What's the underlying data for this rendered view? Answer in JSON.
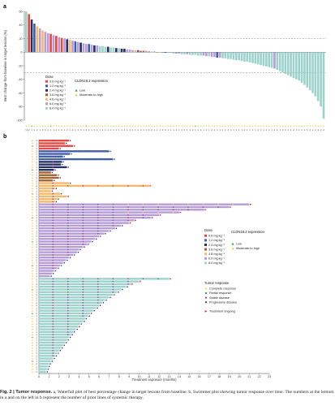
{
  "caption": {
    "label": "Fig. 2 | ",
    "title": "Tumor response.",
    "text": " a, Waterfall plot of best percentage change in target lesions from baseline. b, Swimmer plot showing tumor response over time. The numbers at the bottom in a and on the left in b represent the number of prior lines of systemic therapy."
  },
  "chart_data": [
    {
      "panel": "a",
      "type": "bar",
      "ylabel": "Best change from baseline in target lesions (%)",
      "ylim": [
        -100,
        60
      ],
      "yticks": [
        -100,
        -80,
        -60,
        -40,
        -20,
        0,
        20,
        40,
        60
      ],
      "reference_lines": [
        20,
        -30
      ],
      "grid": false,
      "legend_position": "bottom-left",
      "legend": {
        "dose_title": "Dose",
        "doses": [
          {
            "label": "0.6 mg kg⁻¹",
            "color": "#e8493f"
          },
          {
            "label": "1.2 mg kg⁻¹",
            "color": "#3f5fa8"
          },
          {
            "label": "2.4 mg kg⁻¹",
            "color": "#26305e"
          },
          {
            "label": "3.6 mg kg⁻¹",
            "color": "#a0642c"
          },
          {
            "label": "4.8 mg kg⁻¹",
            "color": "#f7b86a"
          },
          {
            "label": "6.0 mg kg⁻¹",
            "color": "#b69cd8"
          },
          {
            "label": "8.0 mg kg⁻¹",
            "color": "#9ed2cc"
          }
        ],
        "expr_title": "CLDN18.2 expression",
        "expr": [
          {
            "label": "Low",
            "color": "#3d9c3d"
          },
          {
            "label": "Moderate-to-high",
            "color": "#f2cc2a"
          }
        ]
      },
      "values": [
        60,
        56,
        48,
        42,
        38,
        35,
        32,
        30,
        28,
        27,
        25,
        24,
        22,
        21,
        20,
        19,
        18,
        17,
        16,
        15,
        14,
        13,
        12,
        12,
        11,
        10,
        10,
        9,
        9,
        8,
        8,
        7,
        7,
        6,
        6,
        5,
        5,
        4,
        4,
        3,
        3,
        3,
        2,
        2,
        2,
        1,
        1,
        1,
        0,
        0,
        0,
        -1,
        -1,
        -1,
        -2,
        -2,
        -2,
        -3,
        -3,
        -3,
        -4,
        -4,
        -4,
        -5,
        -5,
        -5,
        -6,
        -6,
        -7,
        -7,
        -8,
        -8,
        -9,
        -9,
        -10,
        -10,
        -11,
        -12,
        -12,
        -13,
        -14,
        -14,
        -15,
        -16,
        -17,
        -18,
        -19,
        -20,
        -21,
        -22,
        -23,
        -24,
        -26,
        -28,
        -30,
        -32,
        -34,
        -36,
        -38,
        -40,
        -42,
        -45,
        -48,
        -52,
        -56,
        -60,
        -65,
        -72,
        -80,
        -98
      ],
      "dose_index": [
        6,
        0,
        2,
        1,
        4,
        5,
        4,
        5,
        5,
        0,
        5,
        0,
        5,
        0,
        5,
        2,
        4,
        5,
        1,
        5,
        2,
        5,
        5,
        1,
        5,
        2,
        5,
        6,
        6,
        6,
        2,
        6,
        6,
        2,
        6,
        2,
        2,
        5,
        5,
        5,
        4,
        1,
        0,
        3,
        5,
        3,
        6,
        5,
        3,
        6,
        1,
        1,
        6,
        6,
        6,
        5,
        5,
        6,
        6,
        5,
        6,
        6,
        6,
        6,
        6,
        5,
        5,
        6,
        5,
        5,
        1,
        5,
        6,
        6,
        6,
        6,
        6,
        6,
        6,
        6,
        6,
        6,
        6,
        6,
        6,
        6,
        6,
        6,
        6,
        6,
        6,
        5,
        6,
        6,
        6,
        6,
        6,
        6,
        6,
        6,
        6,
        6,
        6,
        6,
        6,
        6,
        6,
        6,
        6,
        6
      ],
      "expression": [
        1,
        1,
        0,
        1,
        1,
        1,
        1,
        1,
        1,
        0,
        1,
        1,
        1,
        1,
        1,
        1,
        1,
        1,
        1,
        1,
        1,
        1,
        0,
        1,
        1,
        1,
        1,
        1,
        1,
        1,
        1,
        1,
        1,
        1,
        1,
        1,
        1,
        1,
        1,
        1,
        1,
        1,
        1,
        1,
        1,
        1,
        1,
        1,
        1,
        1,
        1,
        1,
        1,
        1,
        1,
        1,
        1,
        1,
        1,
        1,
        1,
        1,
        0,
        1,
        1,
        1,
        1,
        1,
        1,
        1,
        1,
        1,
        1,
        1,
        1,
        1,
        1,
        1,
        1,
        1,
        1,
        1,
        1,
        1,
        1,
        1,
        1,
        1,
        1,
        1,
        1,
        1,
        1,
        1,
        1,
        1,
        1,
        1,
        1,
        1,
        1,
        1,
        1,
        1,
        1,
        1,
        1,
        1,
        1,
        1
      ],
      "prior_lines": [
        ">4",
        "3",
        "1",
        "1",
        "2",
        "1",
        "3",
        "1",
        "2",
        "1",
        "1",
        "2",
        "1",
        "2",
        "1",
        "3",
        "1",
        "2",
        "1",
        "1",
        "3",
        "1",
        "2",
        "1",
        "1",
        "2",
        "1",
        "1",
        "1",
        "1",
        "2",
        "1",
        "1",
        "1",
        "1",
        "1",
        "2",
        "1",
        "1",
        "1",
        "1",
        "1",
        "3",
        "1",
        "1",
        "1",
        "2",
        "1",
        "1",
        "1",
        "2",
        "1",
        "1",
        "1",
        "1",
        "2",
        "1",
        "1",
        "1",
        "1",
        "1",
        "2",
        "1",
        "1",
        "1",
        "1",
        "1",
        "1",
        "2",
        "1",
        "1",
        "1",
        "1",
        "1",
        "2",
        "1",
        "1",
        "1",
        "1",
        "1",
        "2",
        "1",
        "1",
        "1",
        "1",
        "2",
        "1",
        "1",
        "1",
        "1",
        "1",
        "2",
        "1",
        "1",
        "1",
        "1",
        "1",
        "1",
        "2",
        "1",
        "1",
        "1",
        "1",
        "1",
        "2",
        "1",
        "2",
        "1",
        "2",
        "2"
      ]
    },
    {
      "panel": "b",
      "type": "swimmer",
      "xlabel": "Treatment exposure (months)",
      "xlim": [
        0,
        23
      ],
      "xticks": [
        0,
        1,
        2,
        3,
        4,
        5,
        6,
        7,
        8,
        9,
        10,
        11,
        12,
        13,
        14,
        15,
        16,
        17,
        18,
        19,
        20,
        21,
        22,
        23
      ],
      "grid": false,
      "legend_position": "right",
      "legend": {
        "dose_title": "Dose",
        "doses": [
          {
            "label": "0.6 mg kg⁻¹",
            "color": "#e8493f"
          },
          {
            "label": "1.2 mg kg⁻¹",
            "color": "#3f5fa8"
          },
          {
            "label": "2.4 mg kg⁻¹",
            "color": "#26305e"
          },
          {
            "label": "3.6 mg kg⁻¹",
            "color": "#a0642c"
          },
          {
            "label": "4.8 mg kg⁻¹",
            "color": "#f7b86a"
          },
          {
            "label": "6.0 mg kg⁻¹",
            "color": "#b69cd8"
          },
          {
            "label": "8.0 mg kg⁻¹",
            "color": "#9ed2cc"
          }
        ],
        "expr_title": "CLDN18.2 expression",
        "expr": [
          {
            "label": "Low",
            "color": "#3d9c3d"
          },
          {
            "label": "Moderate-to-high",
            "color": "#f2cc2a"
          }
        ],
        "response_title": "Tumor response",
        "responses": [
          {
            "label": "Complete response",
            "color": "#f2e233"
          },
          {
            "label": "Partial response",
            "color": "#2f8f3a"
          },
          {
            "label": "Stable disease",
            "color": "#9a3fa0"
          },
          {
            "label": "Progressive disease",
            "color": "#2b2f8f"
          }
        ],
        "ongoing_label": "Treatment ongoing",
        "ongoing_color": "#d92b2b"
      },
      "patients": [
        {
          "dose": 0,
          "d": 3.0,
          "lines": "2"
        },
        {
          "dose": 0,
          "d": 2.6,
          "lines": "1"
        },
        {
          "dose": 0,
          "d": 3.4,
          "lines": "1"
        },
        {
          "dose": 0,
          "d": 2.0,
          "lines": "1"
        },
        {
          "dose": 1,
          "d": 7.0,
          "lines": "3"
        },
        {
          "dose": 1,
          "d": 3.1,
          "lines": "1"
        },
        {
          "dose": 1,
          "d": 2.4,
          "lines": "1"
        },
        {
          "dose": 1,
          "d": 7.4,
          "lines": "1"
        },
        {
          "dose": 2,
          "d": 2.3,
          "lines": "2"
        },
        {
          "dose": 2,
          "d": 2.2,
          "lines": "1"
        },
        {
          "dose": 2,
          "d": 2.8,
          "lines": "1"
        },
        {
          "dose": 2,
          "d": 1.5,
          "lines": "1"
        },
        {
          "dose": 3,
          "d": 1.2,
          "lines": "1"
        },
        {
          "dose": 3,
          "d": 1.8,
          "lines": "1"
        },
        {
          "dose": 3,
          "d": 2.0,
          "lines": "1"
        },
        {
          "dose": 3,
          "d": 1.4,
          "lines": "2"
        },
        {
          "dose": 4,
          "d": 3.0,
          "lines": "1"
        },
        {
          "dose": 4,
          "d": 11.0,
          "lines": "2"
        },
        {
          "dose": 4,
          "d": 1.6,
          "lines": "1"
        },
        {
          "dose": 4,
          "d": 1.2,
          "lines": "1"
        },
        {
          "dose": 4,
          "d": 2.1,
          "lines": "1"
        },
        {
          "dose": 4,
          "d": 2.8,
          "lines": "1"
        },
        {
          "dose": 4,
          "d": 1.8,
          "lines": "1"
        },
        {
          "dose": 4,
          "d": 1.6,
          "lines": "1"
        },
        {
          "dose": 5,
          "d": 21.0,
          "lines": "2"
        },
        {
          "dose": 5,
          "d": 19.0,
          "lines": "1"
        },
        {
          "dose": 5,
          "d": 16.5,
          "lines": "2"
        },
        {
          "dose": 5,
          "d": 14.0,
          "lines": "1"
        },
        {
          "dose": 5,
          "d": 12.0,
          "lines": "1"
        },
        {
          "dose": 5,
          "d": 11.2,
          "lines": "1"
        },
        {
          "dose": 5,
          "d": 9.5,
          "lines": "2"
        },
        {
          "dose": 5,
          "d": 9.0,
          "lines": "1"
        },
        {
          "dose": 5,
          "d": 8.2,
          "lines": "1"
        },
        {
          "dose": 5,
          "d": 7.6,
          "lines": "1"
        },
        {
          "dose": 5,
          "d": 7.0,
          "lines": "1"
        },
        {
          "dose": 5,
          "d": 6.5,
          "lines": "2"
        },
        {
          "dose": 5,
          "d": 6.0,
          "lines": "1"
        },
        {
          "dose": 5,
          "d": 5.6,
          "lines": "1"
        },
        {
          "dose": 5,
          "d": 5.2,
          "lines": "1"
        },
        {
          "dose": 5,
          "d": 4.8,
          "lines": "2"
        },
        {
          "dose": 5,
          "d": 4.4,
          "lines": "1"
        },
        {
          "dose": 5,
          "d": 4.0,
          "lines": "1"
        },
        {
          "dose": 5,
          "d": 3.8,
          "lines": "1"
        },
        {
          "dose": 5,
          "d": 3.4,
          "lines": "1"
        },
        {
          "dose": 5,
          "d": 3.0,
          "lines": "1"
        },
        {
          "dose": 5,
          "d": 2.7,
          "lines": "2"
        },
        {
          "dose": 5,
          "d": 2.4,
          "lines": "1"
        },
        {
          "dose": 5,
          "d": 2.1,
          "lines": "1"
        },
        {
          "dose": 5,
          "d": 1.8,
          "lines": "1"
        },
        {
          "dose": 5,
          "d": 1.5,
          "lines": "1"
        },
        {
          "dose": 5,
          "d": 1.3,
          "lines": "1"
        },
        {
          "dose": 5,
          "d": 1.1,
          "lines": "1"
        },
        {
          "dose": 6,
          "d": 13.0,
          "lines": "1"
        },
        {
          "dose": 6,
          "d": 10.0,
          "lines": "1"
        },
        {
          "dose": 6,
          "d": 9.2,
          "lines": "2"
        },
        {
          "dose": 6,
          "d": 8.7,
          "lines": "1"
        },
        {
          "dose": 6,
          "d": 8.2,
          "lines": "1"
        },
        {
          "dose": 6,
          "d": 7.8,
          "lines": "1"
        },
        {
          "dose": 6,
          "d": 7.4,
          "lines": "1"
        },
        {
          "dose": 6,
          "d": 7.0,
          "lines": "2"
        },
        {
          "dose": 6,
          "d": 6.6,
          "lines": "1"
        },
        {
          "dose": 6,
          "d": 6.3,
          "lines": "1"
        },
        {
          "dose": 6,
          "d": 6.0,
          "lines": "1"
        },
        {
          "dose": 6,
          "d": 5.7,
          "lines": "1"
        },
        {
          "dose": 6,
          "d": 5.4,
          "lines": "1"
        },
        {
          "dose": 6,
          "d": 5.1,
          "lines": "2"
        },
        {
          "dose": 6,
          "d": 4.9,
          "lines": "1"
        },
        {
          "dose": 6,
          "d": 4.6,
          "lines": "1"
        },
        {
          "dose": 6,
          "d": 4.4,
          "lines": "1"
        },
        {
          "dose": 6,
          "d": 4.1,
          "lines": "1"
        },
        {
          "dose": 6,
          "d": 3.9,
          "lines": "1"
        },
        {
          "dose": 6,
          "d": 3.7,
          "lines": "2"
        },
        {
          "dose": 6,
          "d": 3.4,
          "lines": "1"
        },
        {
          "dose": 6,
          "d": 3.2,
          "lines": "1"
        },
        {
          "dose": 6,
          "d": 3.0,
          "lines": "1"
        },
        {
          "dose": 6,
          "d": 2.8,
          "lines": "1"
        },
        {
          "dose": 6,
          "d": 2.6,
          "lines": "1"
        },
        {
          "dose": 6,
          "d": 2.4,
          "lines": "1"
        },
        {
          "dose": 6,
          "d": 2.2,
          "lines": "2"
        },
        {
          "dose": 6,
          "d": 2.0,
          "lines": "1"
        },
        {
          "dose": 6,
          "d": 1.8,
          "lines": "1"
        },
        {
          "dose": 6,
          "d": 1.6,
          "lines": "1"
        },
        {
          "dose": 6,
          "d": 1.4,
          "lines": "1"
        },
        {
          "dose": 6,
          "d": 1.2,
          "lines": "1"
        },
        {
          "dose": 6,
          "d": 1.0,
          "lines": "2"
        },
        {
          "dose": 6,
          "d": 0.9,
          "lines": "1"
        },
        {
          "dose": 6,
          "d": 0.8,
          "lines": "1"
        },
        {
          "dose": 6,
          "d": 0.7,
          "lines": "1"
        }
      ]
    }
  ]
}
